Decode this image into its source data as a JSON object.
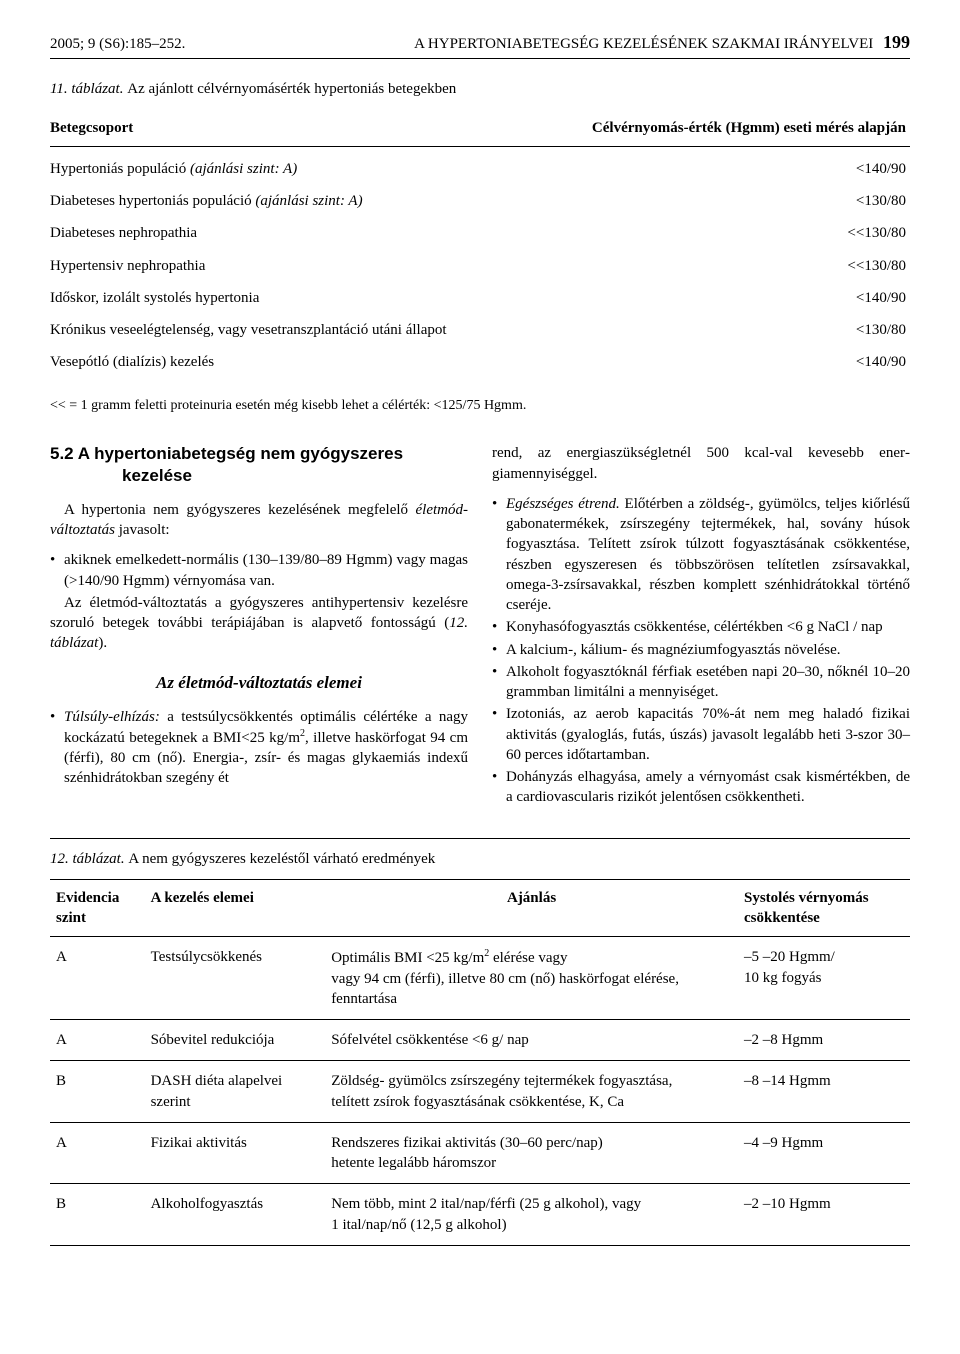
{
  "header": {
    "left": "2005; 9 (S6):185–252.",
    "right_title": "A HYPERTONIABETEGSÉG KEZELÉSÉNEK SZAKMAI IRÁNYELVEI",
    "page_number": "199"
  },
  "table1": {
    "caption_num": "11. táblázat.",
    "caption_title": "Az ajánlott célvérnyomásérték hypertoniás betegekben",
    "col_headers": [
      "Betegcsoport",
      "Célvérnyomás-érték (Hgmm) eseti mérés alapján"
    ],
    "rows": [
      {
        "group": "Hypertoniás populáció (ajánlási szint: A)",
        "group_italic_part": "(ajánlási szint: A)",
        "value": "<140/90"
      },
      {
        "group": "Diabeteses hypertoniás populáció (ajánlási szint: A)",
        "group_italic_part": "(ajánlási szint: A)",
        "value": "<130/80"
      },
      {
        "group": "Diabeteses nephropathia",
        "value": "<<130/80"
      },
      {
        "group": "Hypertensiv nephropathia",
        "value": "<<130/80"
      },
      {
        "group": "Időskor, izolált systolés hypertonia",
        "value": "<140/90"
      },
      {
        "group": "Krónikus veseelégtelenség, vagy vesetranszplantáció utáni állapot",
        "value": "<130/80"
      },
      {
        "group": "Vesepótló (dialízis) kezelés",
        "value": "<140/90"
      }
    ],
    "footnote": "<< = 1 gramm feletti proteinuria esetén még kisebb lehet a célérték: <125/75 Hgmm."
  },
  "section52": {
    "heading_line1": "5.2 A hypertoniabetegség nem gyógyszeres",
    "heading_line2": "kezelése",
    "left_para1_a": "A hypertonia nem gyógyszeres kezelésének megfelelő ",
    "left_para1_ital": "élet­mód-változtatás",
    "left_para1_b": " javasolt:",
    "left_bullet1": "akiknek emelkedett-normális (130–139/80–89 Hgmm) vagy magas (>140/90 Hgmm) vérnyomása van.",
    "left_para2": "Az életmód-változtatás a gyógyszeres antihypertensiv keze­lésre szoruló betegek további terápiájában is alapvető fontos­ságú (12. táblázat).",
    "left_subheading": "Az életmód-változtatás elemei",
    "left_bullet2_ital": "Túlsúly-elhízás:",
    "left_bullet2_rest": " a testsúlycsökkentés optimális célértéke a nagy kockázatú betegeknek a BMI<25 kg/m², illetve haskörfogat 94 cm (férfi), 80 cm (nő). Energia-, zsír- és magas glykaemiás indexű szénhidrátokban szegény ét­",
    "right_cont": "rend, az energiaszükségletnél 500 kcal-val kevesebb ener­giamennyiséggel.",
    "right_bullets": [
      {
        "ital": "Egészséges étrend.",
        "rest": " Előtérben a zöldség-, gyümölcs, teljes kiőrlésű gabonatermékek, zsírszegény tejtermékek, hal, sovány húsok fogyasztása. Telített zsírok túlzott fogyasz­tásának csökkentése, részben egyszeresen és többszörösen telítetlen zsírsavakkal, omega-3-zsírsavakkal, részben komplett szénhidrátokkal történő cseréje."
      },
      {
        "ital": "",
        "rest": "Konyhasófogyasztás csökkentése, célértékben <6 g NaCl / nap"
      },
      {
        "ital": "",
        "rest": "A kalcium-, kálium- és magnéziumfogyasztás növelése."
      },
      {
        "ital": "",
        "rest": "Alkoholt fogyasztóknál férfiak esetében napi 20–30, nők­nél 10–20 grammban limitálni a mennyiséget."
      },
      {
        "ital": "",
        "rest": "Izotoniás, az aerob kapacitás 70%-át nem meg haladó fizi­kai aktivitás (gyaloglás, futás, úszás) javasolt legalább heti 3-szor 30–60 perces időtartamban."
      },
      {
        "ital": "",
        "rest": "Dohányzás elhagyása, amely a vérnyomást csak kismér­tékben, de a cardiovascularis rizikót jelentősen csökkent­heti."
      }
    ]
  },
  "table2": {
    "caption_num": "12. táblázat.",
    "caption_title": "A nem gyógyszeres kezeléstől várható eredmények",
    "headers": {
      "col1_line1": "Evidencia",
      "col1_line2": "szint",
      "col2": "A kezelés elemei",
      "col3": "Ajánlás",
      "col4_line1": "Systolés vérnyomás",
      "col4_line2": "csökkentése"
    },
    "rows": [
      {
        "evidence": "A",
        "element": "Testsúlycsökkenés",
        "recommendation": "Optimális BMI <25 kg/m² elérése vagy\nvagy 94 cm (férfi), illetve 80 cm (nő) haskörfogat elérése,\nfenntartása",
        "reduction": "–5 –20 Hgmm/\n10 kg fogyás"
      },
      {
        "evidence": "A",
        "element": "Sóbevitel redukciója",
        "recommendation": "Sófelvétel csökkentése <6 g/ nap",
        "reduction": "–2 –8 Hgmm"
      },
      {
        "evidence": "B",
        "element": "DASH diéta alapelvei\nszerint",
        "recommendation": "Zöldség- gyümölcs zsírszegény tejtermékek fogyasztása,\ntelített zsírok fogyasztásának csökkentése, K, Ca",
        "reduction": "–8 –14 Hgmm"
      },
      {
        "evidence": "A",
        "element": "Fizikai aktivitás",
        "recommendation": "Rendszeres fizikai aktivitás (30–60 perc/nap)\nhetente legalább háromszor",
        "reduction": "–4 –9 Hgmm"
      },
      {
        "evidence": "B",
        "element": "Alkoholfogyasztás",
        "recommendation": "Nem több, mint 2 ital/nap/férfi (25 g alkohol), vagy\n1 ital/nap/nő (12,5 g alkohol)",
        "reduction": "–2 –10 Hgmm"
      }
    ]
  },
  "colors": {
    "text": "#000000",
    "background": "#ffffff",
    "rule": "#000000"
  },
  "typography": {
    "body_font": "Times New Roman",
    "heading_font": "Arial",
    "body_size_pt": 11,
    "heading_size_pt": 13
  }
}
